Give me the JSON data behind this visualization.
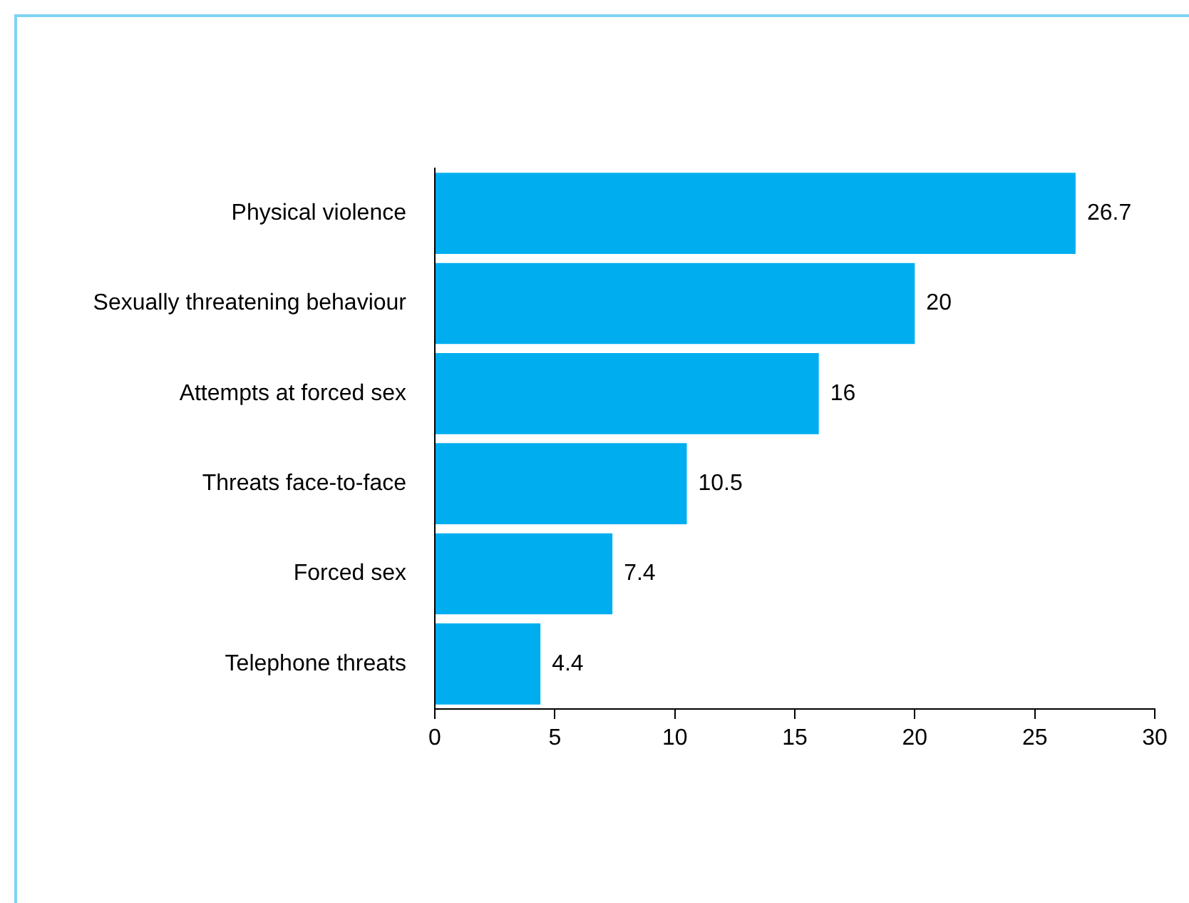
{
  "chart_data": {
    "type": "bar",
    "orientation": "horizontal",
    "categories": [
      "Physical violence",
      "Sexually threatening behaviour",
      "Attempts at forced sex",
      "Threats face-to-face",
      "Forced sex",
      "Telephone threats"
    ],
    "values": [
      26.7,
      20,
      16,
      10.5,
      7.4,
      4.4
    ],
    "color": "#00aeef",
    "xlim": [
      0,
      30
    ],
    "xticks": [
      0,
      5,
      10,
      15,
      20,
      25,
      30
    ],
    "data_labels": true
  }
}
